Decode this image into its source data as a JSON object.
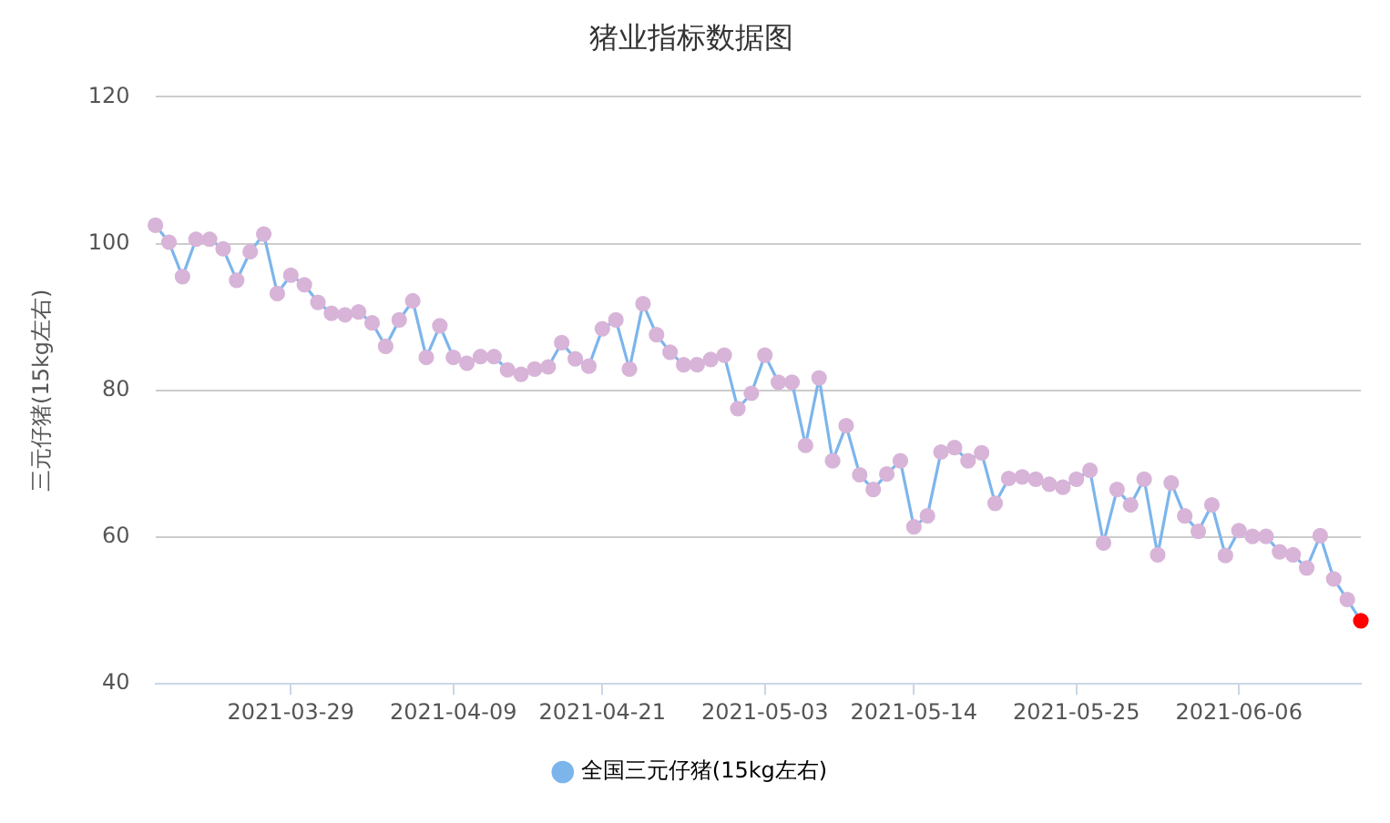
{
  "chart_data": {
    "type": "line",
    "title": "猪业指标数据图",
    "ylabel": "三元仔猪(15kg左右)",
    "categories": [
      null,
      null,
      null,
      null,
      null,
      null,
      null,
      null,
      null,
      null,
      "2021-03-29",
      null,
      null,
      null,
      null,
      null,
      null,
      null,
      null,
      null,
      null,
      null,
      "2021-04-09",
      null,
      null,
      null,
      null,
      null,
      null,
      null,
      null,
      null,
      null,
      "2021-04-21",
      null,
      null,
      null,
      null,
      null,
      null,
      null,
      null,
      null,
      null,
      null,
      "2021-05-03",
      null,
      null,
      null,
      null,
      null,
      null,
      null,
      null,
      null,
      null,
      "2021-05-14",
      null,
      null,
      null,
      null,
      null,
      null,
      null,
      null,
      null,
      null,
      null,
      "2021-05-25",
      null,
      null,
      null,
      null,
      null,
      null,
      null,
      null,
      null,
      null,
      null,
      "2021-06-06",
      null,
      null,
      null,
      null,
      null,
      null,
      null,
      null,
      null
    ],
    "series": [
      {
        "name": "全国三元仔猪(15kg左右)",
        "color": "#7cb5ec",
        "colors": [
          "#d8b4d8",
          "#d8b4d8",
          "#d8b4d8",
          "#d8b4d8",
          "#d8b4d8",
          "#d8b4d8",
          "#d8b4d8",
          "#d8b4d8",
          "#d8b4d8",
          "#d8b4d8",
          "#d8b4d8",
          "#d8b4d8",
          "#d8b4d8",
          "#d8b4d8",
          "#d8b4d8",
          "#d8b4d8",
          "#d8b4d8",
          "#d8b4d8",
          "#d8b4d8",
          "#d8b4d8",
          "#d8b4d8",
          "#d8b4d8",
          "#d8b4d8",
          "#d8b4d8",
          "#d8b4d8",
          "#d8b4d8",
          "#d8b4d8",
          "#d8b4d8",
          "#d8b4d8",
          "#d8b4d8",
          "#d8b4d8",
          "#d8b4d8",
          "#d8b4d8",
          "#d8b4d8",
          "#d8b4d8",
          "#d8b4d8",
          "#d8b4d8",
          "#d8b4d8",
          "#d8b4d8",
          "#d8b4d8",
          "#d8b4d8",
          "#d8b4d8",
          "#d8b4d8",
          "#d8b4d8",
          "#d8b4d8",
          "#d8b4d8",
          "#d8b4d8",
          "#d8b4d8",
          "#d8b4d8",
          "#d8b4d8",
          "#d8b4d8",
          "#d8b4d8",
          "#d8b4d8",
          "#d8b4d8",
          "#d8b4d8",
          "#d8b4d8",
          "#d8b4d8",
          "#d8b4d8",
          "#d8b4d8",
          "#d8b4d8",
          "#d8b4d8",
          "#d8b4d8",
          "#d8b4d8",
          "#d8b4d8",
          "#d8b4d8",
          "#d8b4d8",
          "#d8b4d8",
          "#d8b4d8",
          "#d8b4d8",
          "#d8b4d8",
          "#d8b4d8",
          "#d8b4d8",
          "#d8b4d8",
          "#d8b4d8",
          "#d8b4d8",
          "#d8b4d8",
          "#d8b4d8",
          "#d8b4d8",
          "#d8b4d8",
          "#d8b4d8",
          "#d8b4d8",
          "#d8b4d8",
          "#d8b4d8",
          "#d8b4d8",
          "#d8b4d8",
          "#d8b4d8",
          "#d8b4d8",
          "#d8b4d8",
          "#d8b4d8",
          "#ff0000"
        ],
        "values": [
          102.5,
          100.2,
          95.5,
          100.6,
          100.6,
          99.3,
          95.0,
          98.9,
          101.3,
          93.2,
          95.7,
          94.4,
          92.0,
          90.5,
          90.3,
          90.7,
          89.2,
          86.0,
          89.6,
          92.2,
          84.5,
          88.8,
          84.5,
          83.7,
          84.6,
          84.6,
          82.8,
          82.2,
          82.9,
          83.2,
          86.5,
          84.3,
          83.3,
          88.4,
          89.6,
          82.9,
          91.8,
          87.6,
          85.2,
          83.5,
          83.5,
          84.2,
          84.8,
          77.5,
          79.6,
          84.8,
          81.1,
          81.1,
          72.5,
          81.7,
          70.4,
          75.2,
          68.5,
          66.5,
          68.6,
          70.4,
          61.4,
          62.9,
          71.6,
          72.2,
          70.4,
          71.5,
          64.6,
          68.0,
          68.2,
          67.9,
          67.2,
          66.8,
          67.9,
          69.1,
          59.2,
          66.5,
          64.4,
          67.9,
          57.6,
          67.4,
          62.9,
          60.8,
          64.4,
          57.5,
          60.9,
          60.1,
          60.1,
          58.0,
          57.6,
          55.8,
          60.2,
          54.3,
          51.5,
          48.6
        ]
      }
    ],
    "ylim": [
      40,
      120
    ],
    "yticks": [
      40,
      60,
      80,
      100,
      120
    ],
    "grid": "y",
    "legend": "bottom",
    "marker": "circle"
  }
}
